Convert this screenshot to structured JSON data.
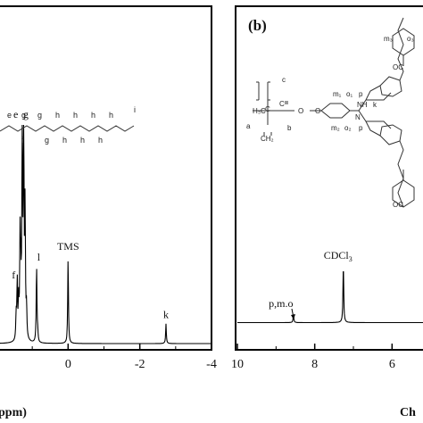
{
  "chart_data": [
    {
      "type": "line",
      "panel": "a",
      "xlabel": "ppm)",
      "xlim": [
        1.9,
        -4
      ],
      "x_ticks": [
        {
          "value": 0,
          "label": "0"
        },
        {
          "value": -2,
          "label": "-2"
        },
        {
          "value": -4,
          "label": "-4"
        }
      ],
      "spectrum": [
        [
          1.9,
          0.02
        ],
        [
          1.55,
          0.03
        ],
        [
          1.45,
          0.13
        ],
        [
          1.42,
          0.28
        ],
        [
          1.38,
          0.18
        ],
        [
          1.34,
          0.45
        ],
        [
          1.32,
          0.25
        ],
        [
          1.28,
          1.0
        ],
        [
          1.24,
          1.0
        ],
        [
          1.2,
          0.6
        ],
        [
          1.16,
          0.15
        ],
        [
          1.0,
          0.05
        ],
        [
          0.88,
          0.36
        ],
        [
          0.85,
          0.06
        ],
        [
          0.0,
          0.4
        ],
        [
          -2.73,
          0.11
        ]
      ],
      "peak_labels": [
        {
          "text": "e",
          "x": 1.31,
          "y": 1.0
        },
        {
          "text": "g",
          "x": 1.23,
          "y": 1.0
        },
        {
          "text": "f",
          "x": 1.42,
          "y": 0.28
        },
        {
          "text": "l",
          "x": 0.87,
          "y": 0.36
        },
        {
          "text": "TMS",
          "x": 0.0,
          "y": 0.4
        },
        {
          "text": "k",
          "x": -2.73,
          "y": 0.11
        }
      ],
      "structure_labels": [
        "e",
        "g",
        "g",
        "h",
        "h",
        "h",
        "h",
        "i",
        "f",
        "g",
        "h",
        "h",
        "h"
      ]
    },
    {
      "type": "line",
      "panel": "b",
      "panel_label": "(b)",
      "xlabel": "Ch",
      "xlim": [
        10,
        5.2
      ],
      "x_ticks": [
        {
          "value": 10,
          "label": "10"
        },
        {
          "value": 8,
          "label": "8"
        },
        {
          "value": 6,
          "label": "6"
        }
      ],
      "spectrum": [
        [
          10,
          0.02
        ],
        [
          8.8,
          0.03
        ],
        [
          8.55,
          0.06
        ],
        [
          8.5,
          0.03
        ],
        [
          7.26,
          0.3
        ],
        [
          5.2,
          0.02
        ]
      ],
      "peak_labels": [
        {
          "text": "CDCl",
          "sub": "3",
          "x": 7.26,
          "y": 0.3
        },
        {
          "text": "p,m.o",
          "x": 8.55,
          "y": 0.06
        }
      ],
      "structure_labels": [
        "c",
        "a",
        "b",
        "H₃C",
        "C",
        "C",
        "O",
        "O",
        "CH₂",
        "m₁",
        "o₁",
        "m₂",
        "o₂",
        "p",
        "p",
        "NH",
        "N",
        "k",
        "m₃",
        "o₃",
        "OC",
        "OC"
      ]
    }
  ]
}
